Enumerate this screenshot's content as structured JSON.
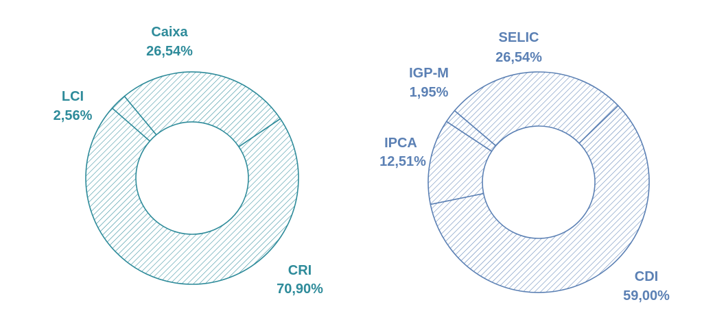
{
  "colors": {
    "left_chart": "#2e8b9a",
    "right_chart": "#5b80b4",
    "background": "#ffffff"
  },
  "chart_data": [
    {
      "type": "pie",
      "style": "donut-hatched",
      "title": "",
      "categories": [
        "CRI",
        "LCI",
        "Caixa"
      ],
      "values": [
        70.9,
        2.56,
        26.54
      ],
      "labels": [
        {
          "name": "CRI",
          "value_text": "70,90%"
        },
        {
          "name": "LCI",
          "value_text": "2,56%"
        },
        {
          "name": "Caixa",
          "value_text": "26,54%"
        }
      ]
    },
    {
      "type": "pie",
      "style": "donut-hatched",
      "title": "",
      "categories": [
        "CDI",
        "IPCA",
        "IGP-M",
        "SELIC"
      ],
      "values": [
        59.0,
        12.51,
        1.95,
        26.54
      ],
      "labels": [
        {
          "name": "CDI",
          "value_text": "59,00%"
        },
        {
          "name": "IPCA",
          "value_text": "12,51%"
        },
        {
          "name": "IGP-M",
          "value_text": "1,95%"
        },
        {
          "name": "SELIC",
          "value_text": "26,54%"
        }
      ]
    }
  ]
}
